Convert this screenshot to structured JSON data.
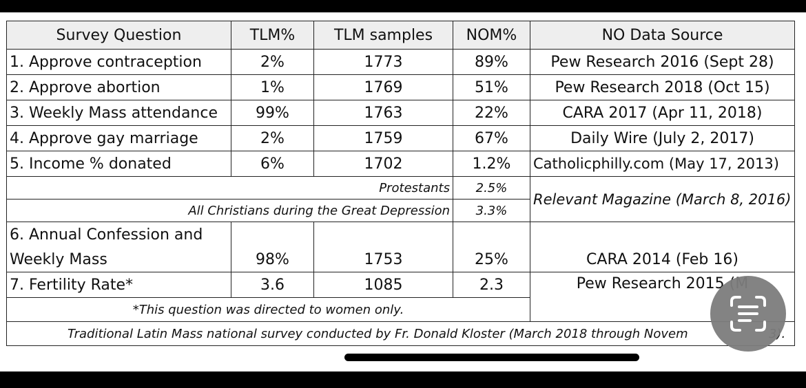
{
  "table": {
    "headers": [
      "Survey Question",
      "TLM%",
      "TLM samples",
      "NOM%",
      "NO Data Source"
    ],
    "rows": [
      {
        "q": "1. Approve contraception",
        "tlm": "2%",
        "samples": "1773",
        "nom": "89%",
        "source": "Pew Research 2016 (Sept 28)"
      },
      {
        "q": "2. Approve abortion",
        "tlm": "1%",
        "samples": "1769",
        "nom": "51%",
        "source": "Pew Research 2018 (Oct 15)"
      },
      {
        "q": "3. Weekly Mass attendance",
        "tlm": "99%",
        "samples": "1763",
        "nom": "22%",
        "source": "CARA 2017 (Apr 11, 2018)"
      },
      {
        "q": "4. Approve gay marriage",
        "tlm": "2%",
        "samples": "1759",
        "nom": "67%",
        "source": "Daily Wire (July 2, 2017)"
      },
      {
        "q": "5. Income % donated",
        "tlm": "6%",
        "samples": "1702",
        "nom": "1.2%",
        "source": "Catholicphilly.com  (May 17, 2013)"
      }
    ],
    "sub_rows": [
      {
        "label": "Protestants",
        "value": "2.5%"
      },
      {
        "label": "All Christians during the Great Depression",
        "value": "3.3%"
      }
    ],
    "sub_source": "Relevant Magazine (March 8, 2016)",
    "row6": {
      "q_line1": "6. Annual Confession and",
      "q_line2": "Weekly Mass",
      "tlm": "98%",
      "samples": "1753",
      "nom": "25%",
      "source": "CARA 2014 (Feb 16)"
    },
    "row7": {
      "q": "7. Fertility Rate*",
      "tlm": "3.6",
      "samples": "1085",
      "nom": "2.3",
      "source": "Pew Research 2015 (M"
    },
    "footnote": "*This question was directed to women only.",
    "caption": "Traditional Latin Mass national survey conducted by Fr. Donald Kloster (March 2018 through Novem",
    "caption_tail": "3)."
  },
  "overlay": {
    "scan_icon": "text-scan-icon"
  }
}
